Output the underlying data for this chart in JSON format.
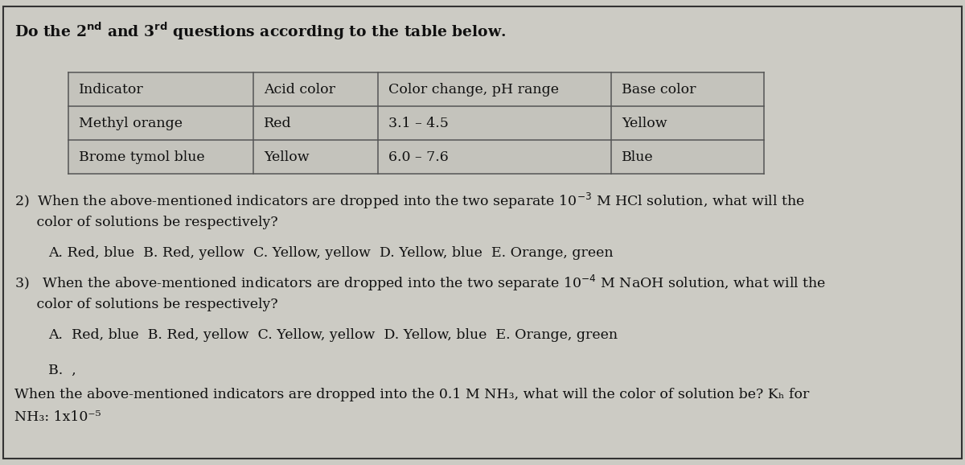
{
  "table_headers": [
    "Indicator",
    "Acid color",
    "Color change, pH range",
    "Base color"
  ],
  "table_rows": [
    [
      "Methyl orange",
      "Red",
      "3.1 – 4.5",
      "Yellow"
    ],
    [
      "Brome tymol blue",
      "Yellow",
      "6.0 – 7.6",
      "Blue"
    ]
  ],
  "q2_line1": "2)  When the above-mentioned indicators are dropped into the two separate 10",
  "q2_sup": "-3",
  "q2_line1b": " M HCl solution, what will the",
  "q2_line2": "     color of solutions be respectively?",
  "q2_options": "A. Red, blue  B. Red, yellow  C. Yellow, yellow  D. Yellow, blue  E. Orange, green",
  "q3_line1": "3)   When the above-mentioned indicators are dropped into the two separate 10",
  "q3_sup": "-4",
  "q3_line1b": " M NaOH solution, what will the",
  "q3_line2": "     color of solutions be respectively?",
  "q3_options": "A.  Red, blue  B. Red, yellow  C. Yellow, yellow  D. Yellow, blue  E. Orange, green",
  "qb_line1": "B.  ,",
  "qb_line2": "When the above-mentioned indicators are dropped into the 0.1 M NH₃, what will the color of solution be? Kₕ for",
  "qb_line3": "NH₃: 1x10⁻⁵",
  "bg_color": "#cccbc4",
  "table_bg": "#c4c3bc",
  "text_color": "#111111",
  "border_color": "#555555",
  "font_size": 12.5,
  "title_font_size": 13.5
}
